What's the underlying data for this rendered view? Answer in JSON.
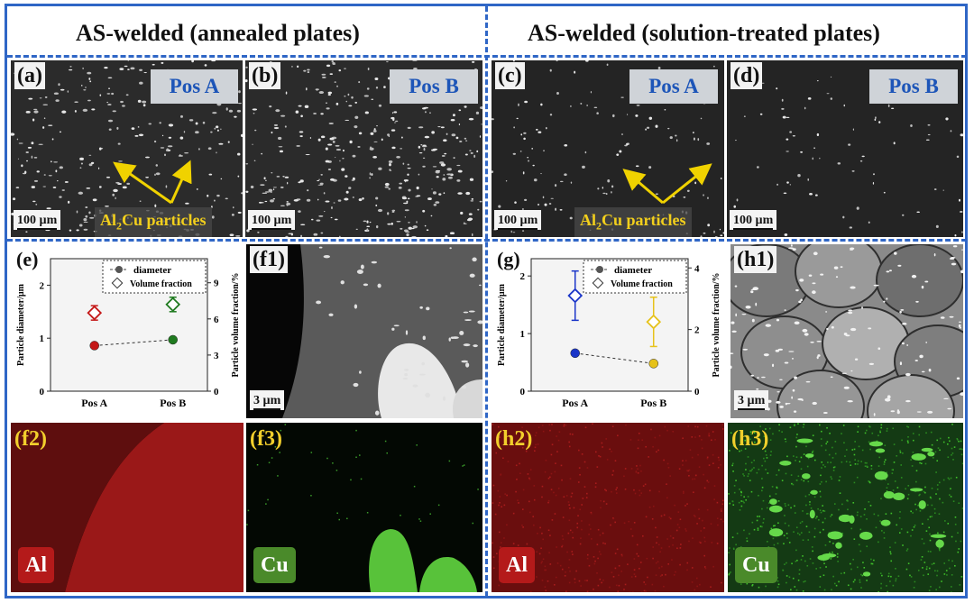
{
  "headers": {
    "left": "AS-welded   (annealed plates)",
    "right": "AS-welded   (solution-treated plates)"
  },
  "sem_panels": [
    {
      "label": "(a)",
      "pos": "Pos A",
      "scale": "100 µm",
      "annotation": {
        "prefix": "Al",
        "sub": "2",
        "suffix": "Cu particles"
      }
    },
    {
      "label": "(b)",
      "pos": "Pos B",
      "scale": "100 µm"
    },
    {
      "label": "(c)",
      "pos": "Pos A",
      "scale": "100 µm",
      "annotation": {
        "prefix": "Al",
        "sub": "2",
        "suffix": "Cu particles"
      }
    },
    {
      "label": "(d)",
      "pos": "Pos B",
      "scale": "100 µm"
    }
  ],
  "micro_panels": {
    "f1": {
      "label": "(f1)",
      "scale": "3 µm"
    },
    "h1": {
      "label": "(h1)",
      "scale": "3 µm"
    }
  },
  "map_panels": [
    {
      "label": "(f2)",
      "element": "Al",
      "element_color": "#b41a1a",
      "tint": "#c02020"
    },
    {
      "label": "(f3)",
      "element": "Cu",
      "element_color": "#4a8a2a",
      "tint": "#3fbf2a"
    },
    {
      "label": "(h2)",
      "element": "Al",
      "element_color": "#b41a1a",
      "tint": "#c02020"
    },
    {
      "label": "(h3)",
      "element": "Cu",
      "element_color": "#4a8a2a",
      "tint": "#3fbf2a"
    }
  ],
  "chart_data": [
    {
      "panel": "(e)",
      "type": "scatter",
      "categories": [
        "Pos A",
        "Pos B"
      ],
      "ylabel": "Particle diameter/µm",
      "y2label": "Particle volume fraction/%",
      "ylim": [
        0,
        2.5
      ],
      "yticks": [
        "0",
        "1",
        "2"
      ],
      "y2lim": [
        0,
        11
      ],
      "y2ticks": [
        "0",
        "3",
        "6",
        "9"
      ],
      "legend": [
        "diameter",
        "Volume fraction"
      ],
      "legend_position": "top-right",
      "series": [
        {
          "name": "diameter",
          "values": [
            0.86,
            0.97
          ],
          "colors": [
            "#c41818",
            "#1f7a1f"
          ]
        },
        {
          "name": "Volume fraction",
          "values": [
            6.5,
            7.2
          ],
          "errors": [
            0.6,
            0.6
          ],
          "colors": [
            "#c41818",
            "#1f7a1f"
          ]
        }
      ]
    },
    {
      "panel": "(g)",
      "type": "scatter",
      "categories": [
        "Pos A",
        "Pos B"
      ],
      "ylabel": "Particle diameter/µm",
      "y2label": "Particle volume fraction/%",
      "ylim": [
        0,
        2.3
      ],
      "yticks": [
        "0",
        "1",
        "2"
      ],
      "y2lim": [
        0,
        4.3
      ],
      "y2ticks": [
        "0",
        "2",
        "4"
      ],
      "legend": [
        "diameter",
        "Volume fraction"
      ],
      "legend_position": "top-right",
      "series": [
        {
          "name": "diameter",
          "values": [
            0.66,
            0.48
          ],
          "colors": [
            "#1a35c8",
            "#e6c21a"
          ]
        },
        {
          "name": "Volume fraction",
          "values": [
            3.1,
            2.25
          ],
          "errors": [
            0.8,
            0.8
          ],
          "colors": [
            "#1a35c8",
            "#e6c21a"
          ]
        }
      ]
    }
  ]
}
